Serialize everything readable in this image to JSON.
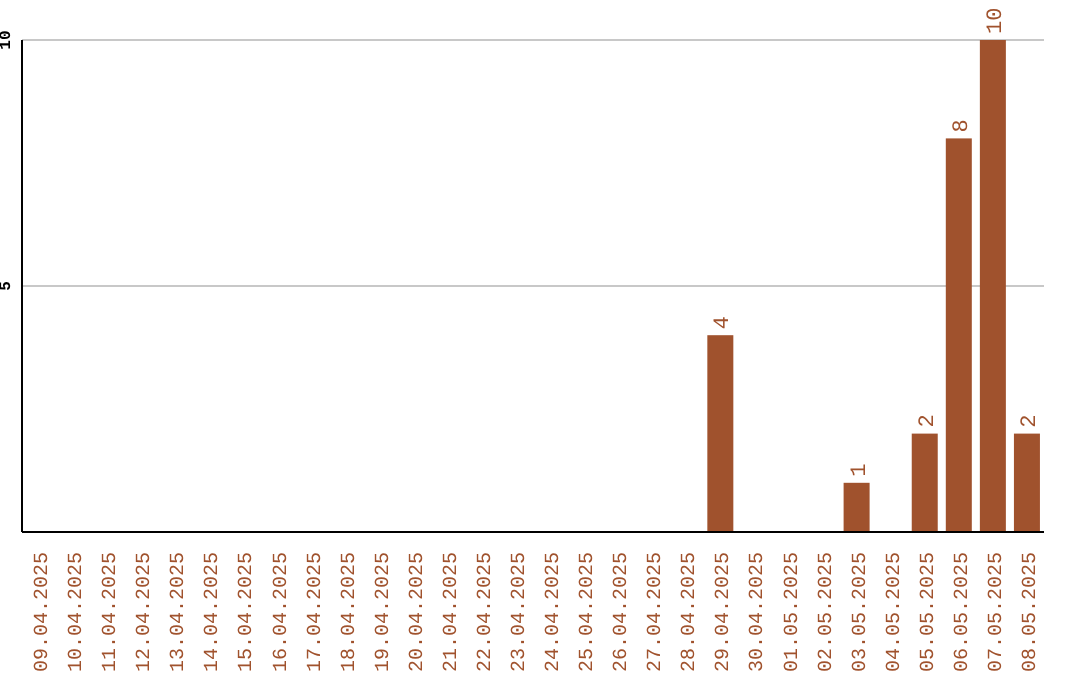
{
  "chart_data": {
    "type": "bar",
    "categories": [
      "09.04.2025",
      "10.04.2025",
      "11.04.2025",
      "12.04.2025",
      "13.04.2025",
      "14.04.2025",
      "15.04.2025",
      "16.04.2025",
      "17.04.2025",
      "18.04.2025",
      "19.04.2025",
      "20.04.2025",
      "21.04.2025",
      "22.04.2025",
      "23.04.2025",
      "24.04.2025",
      "25.04.2025",
      "26.04.2025",
      "27.04.2025",
      "28.04.2025",
      "29.04.2025",
      "30.04.2025",
      "01.05.2025",
      "02.05.2025",
      "03.05.2025",
      "04.05.2025",
      "05.05.2025",
      "06.05.2025",
      "07.05.2025",
      "08.05.2025"
    ],
    "values": [
      0,
      0,
      0,
      0,
      0,
      0,
      0,
      0,
      0,
      0,
      0,
      0,
      0,
      0,
      0,
      0,
      0,
      0,
      0,
      0,
      4,
      0,
      0,
      0,
      1,
      0,
      2,
      8,
      10,
      2
    ],
    "value_labels": [
      null,
      null,
      null,
      null,
      null,
      null,
      null,
      null,
      null,
      null,
      null,
      null,
      null,
      null,
      null,
      null,
      null,
      null,
      null,
      null,
      "4",
      null,
      null,
      null,
      "1",
      null,
      "2",
      "8",
      "10",
      "2"
    ],
    "color": "#a0522d",
    "ylim": [
      0,
      10
    ],
    "yticks": [
      5,
      10
    ],
    "grid": "y"
  }
}
